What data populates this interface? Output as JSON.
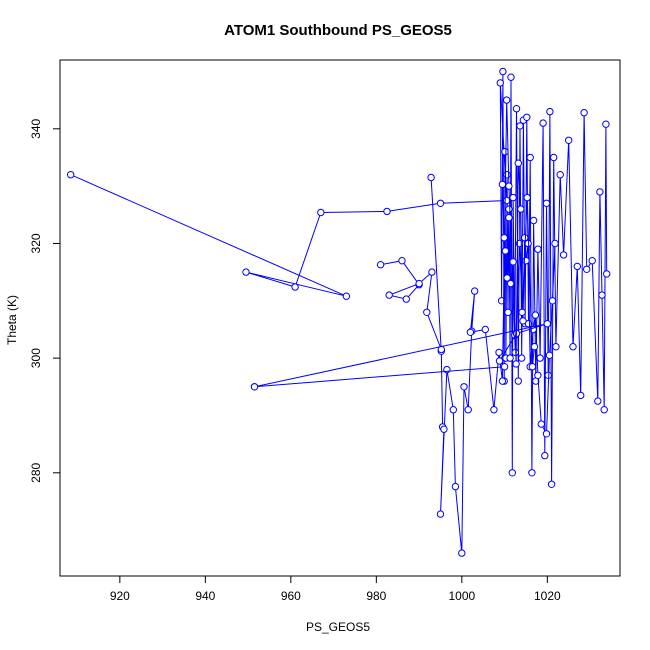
{
  "chart_data": {
    "type": "line",
    "title": "ATOM1 Southbound PS_GEOS5",
    "xlabel": "PS_GEOS5",
    "ylabel": "Theta (K)",
    "xlim": [
      906,
      1037
    ],
    "ylim": [
      262,
      352
    ],
    "xticks": [
      920,
      940,
      960,
      980,
      1000,
      1020
    ],
    "yticks": [
      280,
      300,
      320,
      340
    ],
    "xtick_labels": [
      "920",
      "940",
      "960",
      "980",
      "1000",
      "1020"
    ],
    "ytick_labels": [
      "280",
      "300",
      "320",
      "340"
    ],
    "grid": false,
    "color": "#0000ff",
    "series": [
      {
        "points": [
          [
            908.5,
            332
          ],
          [
            973,
            310.8
          ],
          [
            949.5,
            315
          ],
          [
            961,
            312.4
          ],
          [
            967,
            325.4
          ],
          [
            982.5,
            325.6
          ],
          [
            995,
            327
          ],
          [
            1010.5,
            327.5
          ],
          [
            1009,
            348
          ],
          [
            1009.3,
            310
          ],
          [
            1009.6,
            350
          ],
          [
            1009.9,
            296
          ],
          [
            1010.1,
            336
          ],
          [
            1010.3,
            300
          ],
          [
            1010.6,
            332
          ],
          [
            1010.8,
            308
          ],
          [
            1011,
            326
          ],
          [
            1011.3,
            300
          ],
          [
            1011.5,
            349
          ],
          [
            1011.8,
            280
          ],
          [
            1012,
            328
          ],
          [
            1012.4,
            304
          ],
          [
            1012.8,
            343.5
          ],
          [
            1013.2,
            296
          ],
          [
            1013.6,
            340.5
          ],
          [
            1014,
            300
          ],
          [
            1014.4,
            341.5
          ],
          [
            1014.8,
            306
          ],
          [
            1015.2,
            342
          ],
          [
            1015.6,
            306
          ],
          [
            1016,
            335
          ],
          [
            1016.4,
            280
          ],
          [
            1016.8,
            324
          ],
          [
            1017.3,
            296
          ],
          [
            1017.8,
            319
          ],
          [
            1018.3,
            300
          ],
          [
            1019,
            341
          ],
          [
            1019.4,
            283
          ],
          [
            1019.8,
            327
          ],
          [
            1020.2,
            297
          ],
          [
            1020.6,
            343
          ],
          [
            1021,
            278
          ],
          [
            1021.5,
            335
          ],
          [
            1022,
            302
          ],
          [
            1023,
            332
          ],
          [
            1023.8,
            318
          ],
          [
            1025,
            338
          ],
          [
            1026,
            302
          ],
          [
            1027,
            316
          ],
          [
            1027.8,
            293.5
          ],
          [
            1028.6,
            342.8
          ],
          [
            1029.2,
            315.5
          ],
          [
            1030.5,
            317
          ],
          [
            1031.8,
            292.5
          ],
          [
            1032.3,
            329
          ],
          [
            1032.8,
            311
          ],
          [
            1033.3,
            291
          ],
          [
            1033.7,
            340.8
          ],
          [
            1033.9,
            314.7
          ]
        ]
      },
      {
        "points": [
          [
            992.8,
            331.5
          ],
          [
            995.2,
            301.2
          ],
          [
            995.5,
            288
          ],
          [
            995.8,
            287.6
          ],
          [
            995,
            272.8
          ],
          [
            996.5,
            298
          ],
          [
            998,
            291
          ],
          [
            998.5,
            277.6
          ],
          [
            1000,
            266
          ],
          [
            1000.5,
            295
          ],
          [
            1001.5,
            291
          ],
          [
            1002.3,
            304.7
          ],
          [
            1003,
            311.7
          ],
          [
            1002,
            304.5
          ],
          [
            1005.5,
            305
          ],
          [
            1007.5,
            291
          ],
          [
            1008.7,
            301
          ],
          [
            1009.5,
            296
          ],
          [
            1010.5,
            345
          ],
          [
            1011,
            330
          ],
          [
            1012.5,
            301
          ],
          [
            1013.5,
            320
          ],
          [
            1014.3,
            306.5
          ],
          [
            1014.7,
            321
          ],
          [
            1015,
            317
          ],
          [
            1015.5,
            320
          ],
          [
            1016,
            298.5
          ],
          [
            1016.7,
            305
          ],
          [
            1017.2,
            307.5
          ],
          [
            1017.8,
            297
          ],
          [
            1018.6,
            288.5
          ],
          [
            1019.8,
            286.8
          ],
          [
            1020.5,
            300.5
          ],
          [
            1021.2,
            310
          ],
          [
            1021.8,
            320
          ]
        ]
      },
      {
        "points": [
          [
            981,
            316.3
          ],
          [
            986,
            317
          ],
          [
            990,
            312.8
          ],
          [
            987,
            310.3
          ],
          [
            983,
            311
          ],
          [
            990,
            313
          ],
          [
            993,
            315
          ],
          [
            991.8,
            308
          ],
          [
            995.2,
            301.5
          ]
        ]
      },
      {
        "points": [
          [
            951.5,
            295
          ],
          [
            1010,
            298.5
          ],
          [
            1008.8,
            299.5
          ],
          [
            1012.8,
            304.3
          ],
          [
            1020,
            306
          ],
          [
            951.5,
            295
          ]
        ]
      },
      {
        "points": [
          [
            1009.5,
            330.3
          ],
          [
            1009.9,
            321
          ],
          [
            1010.2,
            318.7
          ],
          [
            1010.6,
            314
          ],
          [
            1011,
            324.5
          ],
          [
            1011.4,
            313
          ],
          [
            1012,
            316.8
          ],
          [
            1012.7,
            299
          ],
          [
            1013.2,
            334
          ],
          [
            1013.8,
            326
          ],
          [
            1014.1,
            308
          ],
          [
            1015.3,
            328
          ],
          [
            1016.5,
            298.5
          ],
          [
            1017,
            302
          ]
        ]
      }
    ]
  }
}
